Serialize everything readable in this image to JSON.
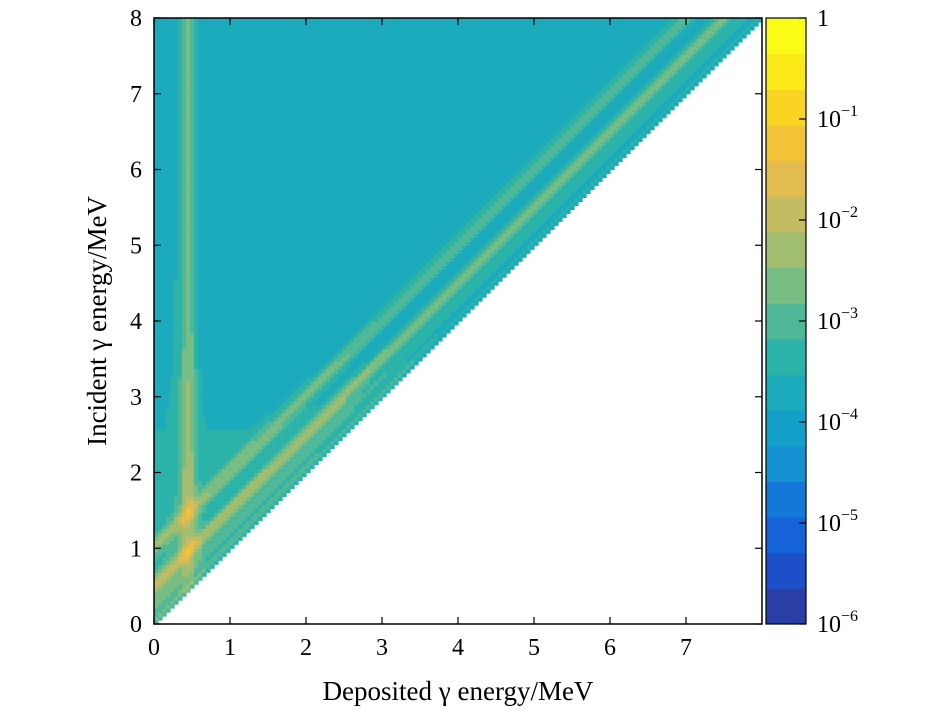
{
  "chart_data": {
    "type": "heatmap",
    "xlabel": "Deposited γ energy/MeV",
    "ylabel": "Incident γ energy/MeV",
    "xlim": [
      0,
      8
    ],
    "ylim": [
      0,
      8
    ],
    "x_ticks": [
      "0",
      "1",
      "2",
      "3",
      "4",
      "5",
      "6",
      "7"
    ],
    "y_ticks": [
      "0",
      "1",
      "2",
      "3",
      "4",
      "5",
      "6",
      "7",
      "8"
    ],
    "colorbar": {
      "scale": "log",
      "range": [
        1e-06,
        1
      ],
      "levels_per_decade": 3,
      "tick_labels": [
        {
          "base": "10",
          "exp": "−6",
          "value": -6
        },
        {
          "base": "10",
          "exp": "−5",
          "value": -5
        },
        {
          "base": "10",
          "exp": "−4",
          "value": -4
        },
        {
          "base": "10",
          "exp": "−3",
          "value": -3
        },
        {
          "base": "10",
          "exp": "−2",
          "value": -2
        },
        {
          "base": "10",
          "exp": "−1",
          "value": -1
        },
        {
          "base": "1",
          "exp": "",
          "value": 0
        }
      ],
      "colors_low_to_high": [
        "#2a3fa6",
        "#1c4fc8",
        "#1662d8",
        "#1478d8",
        "#1391d2",
        "#12a0c8",
        "#1cabbc",
        "#2bb3aa",
        "#4fb898",
        "#77bd84",
        "#a1be70",
        "#c4bc62",
        "#e2bc4e",
        "#f3c236",
        "#f9d423",
        "#fbea18",
        "#fbfc15"
      ]
    },
    "regions": {
      "valid_domain": "deposited energy ≤ incident energy (below the diagonal is empty)",
      "photopeak_line": "deposited = incident (highest density)",
      "escape_peaks": "deposited = incident − 0.511 MeV and incident − 1.022 MeV",
      "backscatter_band": "vertical band near deposited ≈ 0.2–0.5 MeV",
      "compton_continuum": "broad low-density region, ~1e-4"
    },
    "grid": false
  }
}
